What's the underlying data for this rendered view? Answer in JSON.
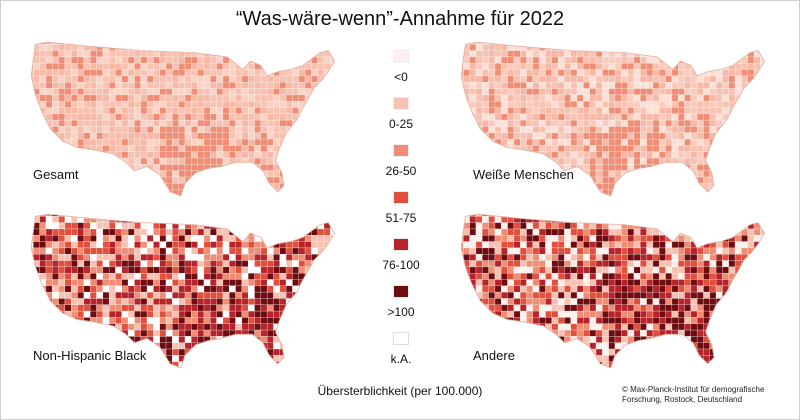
{
  "title": "“Was-wäre-wenn”-Annahme für 2022",
  "axis_label": "Übersterblichkeit (per 100.000)",
  "credit_line1": "© Max-Planck-Institut für demografische",
  "credit_line2": "Forschung, Rostock, Deutschland",
  "legend": [
    {
      "label": "<0",
      "color": "#fdf1ee"
    },
    {
      "label": "0-25",
      "color": "#f8c2b3"
    },
    {
      "label": "26-50",
      "color": "#ef8d75"
    },
    {
      "label": "51-75",
      "color": "#e2503d"
    },
    {
      "label": "76-100",
      "color": "#b6232a"
    },
    {
      "label": ">100",
      "color": "#6d0d12"
    },
    {
      "label": "k.A.",
      "color": "#ffffff"
    }
  ],
  "maps": [
    {
      "label": "Gesamt",
      "palette": [
        "#f8c2b3",
        "#f8c2b3",
        "#f6b9a7",
        "#fad3c7",
        "#ef8d75"
      ]
    },
    {
      "label": "Weiße Menschen",
      "palette": [
        "#f8c2b3",
        "#f9cbbd",
        "#f6b9a7",
        "#ef8d75",
        "#fce0d8"
      ]
    },
    {
      "label": "Non-Hispanic Black",
      "palette": [
        "#ffffff",
        "#ef8d75",
        "#e2503d",
        "#b6232a",
        "#6d0d12",
        "#f8c2b3"
      ]
    },
    {
      "label": "Andere",
      "palette": [
        "#f8c2b3",
        "#ef8d75",
        "#e2503d",
        "#b6232a",
        "#6d0d12",
        "#fdf1ee"
      ]
    }
  ]
}
